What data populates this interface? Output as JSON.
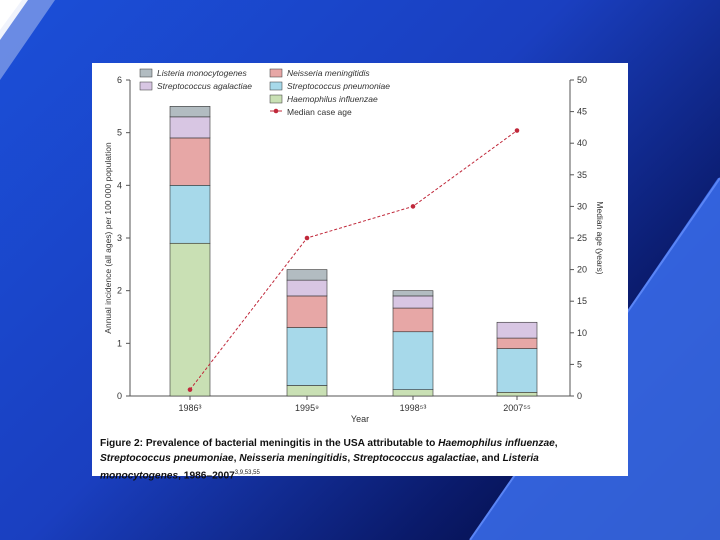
{
  "chart_data": {
    "type": "bar",
    "categories": [
      "1986³",
      "1995⁹",
      "1998⁵³",
      "2007⁵⁵"
    ],
    "xlabel": "Year",
    "ylabel": "Annual incidence (all ages) per 100 000 population",
    "y2label": "Median age (years)",
    "ylim": [
      0,
      6
    ],
    "y2lim": [
      0,
      50
    ],
    "yticks": [
      "0",
      "1",
      "2",
      "3",
      "4",
      "5",
      "6"
    ],
    "y2ticks": [
      "0",
      "5",
      "10",
      "15",
      "20",
      "25",
      "30",
      "35",
      "40",
      "45",
      "50"
    ],
    "series": [
      {
        "name": "Haemophilus influenzae",
        "color": "#c9e0b4",
        "values": [
          2.9,
          0.2,
          0.12,
          0.07
        ]
      },
      {
        "name": "Streptococcus pneumoniae",
        "color": "#a7d9ea",
        "values": [
          1.1,
          1.1,
          1.1,
          0.83
        ]
      },
      {
        "name": "Neisseria meningitidis",
        "color": "#e7a7a6",
        "values": [
          0.9,
          0.6,
          0.45,
          0.2
        ]
      },
      {
        "name": "Streptococcus agalactiae",
        "color": "#d8c6e3",
        "values": [
          0.4,
          0.3,
          0.23,
          0.3
        ]
      },
      {
        "name": "Listeria monocytogenes",
        "color": "#b2bcc1",
        "values": [
          0.2,
          0.2,
          0.1,
          0.0
        ]
      }
    ],
    "line": {
      "name": "Median case age",
      "color": "#c0283a",
      "values": [
        1,
        25,
        30,
        42
      ]
    },
    "legend": [
      "Listeria monocytogenes",
      "Neisseria meningitidis",
      "Streptococcus agalactiae",
      "Streptococcus pneumoniae",
      "Haemophilus influenzae",
      "Median case age"
    ]
  },
  "caption": {
    "label": "Figure 2:",
    "text_bold_prefix": "Prevalence of bacterial meningitis in the USA attributable to ",
    "t1": "Haemophilus influenzae",
    "sep1": ", ",
    "t2": "Streptococcus pneumoniae",
    "sep2": ", ",
    "t3": "Neisseria meningitidis",
    "sep3": ", ",
    "t4": "Streptococcus agalactiae",
    "sep4": ", and ",
    "t5": "Listeria monocytogenes",
    "suffix": ", 1986–2007",
    "refs": "3,9,53,55"
  }
}
